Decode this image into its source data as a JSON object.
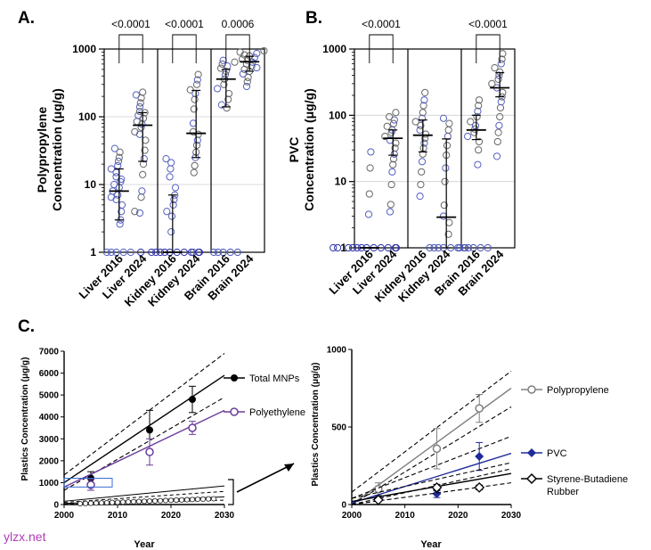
{
  "watermark": "ylzx.net",
  "chart_data": [
    {
      "panel": "A.",
      "type": "scatter",
      "scale": "log",
      "ylabel_line1": "Polypropylene",
      "ylabel_line2": "Concentration (μg/g)",
      "yticks": [
        "1",
        "10",
        "100",
        "1000"
      ],
      "ylim": [
        1,
        1000
      ],
      "categories": [
        "Liver 2016",
        "Liver 2024",
        "Kidney 2016",
        "Kidney 2024",
        "Brain 2016",
        "Brain 2024"
      ],
      "groups": [
        {
          "name": "Liver 2016",
          "median": 8,
          "q1": 3,
          "q3": 17,
          "values": [
            1,
            1,
            1,
            1,
            1,
            2.6,
            3,
            4,
            5,
            6,
            6.5,
            7,
            8,
            9,
            10,
            11,
            12,
            13,
            15,
            17,
            19,
            22,
            25,
            30,
            34
          ]
        },
        {
          "name": "Liver 2024",
          "median": 75,
          "q1": 22,
          "q3": 115,
          "values": [
            3.8,
            4,
            6.5,
            8,
            14,
            20,
            24,
            32,
            45,
            55,
            60,
            70,
            78,
            85,
            95,
            105,
            115,
            120,
            140,
            160,
            190,
            210,
            230
          ]
        },
        {
          "name": "Kidney 2016",
          "median": 1,
          "q1": 1,
          "q3": 7,
          "values": [
            1,
            1,
            1,
            1,
            1,
            1,
            1,
            1,
            1,
            1,
            1,
            2,
            3.4,
            4,
            5,
            6,
            7,
            9,
            13,
            17,
            21,
            24
          ]
        },
        {
          "name": "Kidney 2024",
          "median": 57,
          "q1": 25,
          "q3": 245,
          "values": [
            1,
            15,
            19,
            25,
            30,
            38,
            45,
            55,
            60,
            80,
            130,
            180,
            220,
            250,
            300,
            350,
            420
          ]
        },
        {
          "name": "Brain 2016",
          "median": 360,
          "q1": 140,
          "q3": 500,
          "values": [
            1,
            1,
            1,
            1,
            1,
            135,
            150,
            180,
            220,
            260,
            300,
            360,
            420,
            470,
            520,
            560,
            600,
            640,
            680
          ]
        },
        {
          "name": "Brain 2024",
          "median": 650,
          "q1": 470,
          "q3": 780,
          "values": [
            280,
            330,
            380,
            430,
            470,
            500,
            530,
            560,
            600,
            640,
            680,
            710,
            750,
            790,
            820,
            860,
            900,
            940
          ]
        }
      ],
      "comparisons": [
        {
          "label": "<0.0001",
          "groups": [
            0,
            1
          ]
        },
        {
          "label": "<0.0001",
          "groups": [
            2,
            3
          ]
        },
        {
          "label": "0.0006",
          "groups": [
            4,
            5
          ]
        }
      ]
    },
    {
      "panel": "B.",
      "type": "scatter",
      "scale": "log",
      "ylabel_line1": "PVC",
      "ylabel_line2": "Concentration (μg/g)",
      "yticks": [
        "1",
        "10",
        "100",
        "1000"
      ],
      "ylim": [
        1,
        1000
      ],
      "categories": [
        "Liver 2016",
        "Liver 2024",
        "Kidney 2016",
        "Kidney 2024",
        "Brain 2016",
        "Brain 2024"
      ],
      "groups": [
        {
          "name": "Liver 2016",
          "median": 1,
          "q1": 1,
          "q3": 1,
          "values": [
            1,
            1,
            1,
            1,
            1,
            1,
            1,
            1,
            1,
            1,
            1,
            1,
            3.2,
            6.5,
            16,
            28
          ]
        },
        {
          "name": "Liver 2024",
          "median": 45,
          "q1": 25,
          "q3": 60,
          "values": [
            3.5,
            4.5,
            9,
            14,
            18,
            22,
            26,
            32,
            38,
            42,
            48,
            55,
            60,
            68,
            75,
            85,
            95,
            110
          ]
        },
        {
          "name": "Kidney 2016",
          "median": 50,
          "q1": 28,
          "q3": 85,
          "values": [
            6,
            9,
            14,
            20,
            26,
            32,
            38,
            45,
            52,
            60,
            70,
            80,
            90,
            110,
            140,
            170,
            220
          ]
        },
        {
          "name": "Kidney 2024",
          "median": 2.9,
          "q1": 1,
          "q3": 44,
          "values": [
            1,
            1,
            1,
            1,
            1,
            1,
            1,
            1.6,
            2.4,
            3,
            4.4,
            10,
            16,
            25,
            35,
            48,
            60,
            75,
            90
          ]
        },
        {
          "name": "Brain 2016",
          "median": 60,
          "q1": 43,
          "q3": 100,
          "values": [
            1,
            1,
            1,
            1,
            1,
            1,
            18,
            30,
            40,
            48,
            55,
            62,
            70,
            80,
            95,
            115,
            140,
            170
          ]
        },
        {
          "name": "Brain 2024",
          "median": 260,
          "q1": 190,
          "q3": 440,
          "values": [
            24,
            40,
            55,
            70,
            95,
            130,
            160,
            190,
            220,
            260,
            300,
            350,
            400,
            450,
            520,
            600,
            700,
            850
          ]
        }
      ],
      "comparisons": [
        {
          "label": "<0.0001",
          "groups": [
            0,
            1
          ]
        },
        {
          "label": "<0.0001",
          "groups": [
            4,
            5
          ]
        }
      ]
    },
    {
      "panel": "C.",
      "type": "line",
      "ylabel": "Plastics Concentration (μg/g)",
      "xlabel": "Year",
      "xlim": [
        2000,
        2030
      ],
      "ylim": [
        0,
        7000
      ],
      "xticks": [
        "2000",
        "2010",
        "2020",
        "2030"
      ],
      "yticks": [
        "0",
        "1000",
        "2000",
        "3000",
        "4000",
        "5000",
        "6000",
        "7000"
      ],
      "series": [
        {
          "name": "Total MNPs",
          "x": [
            2005,
            2016,
            2024
          ],
          "y": [
            1200,
            3400,
            4800
          ],
          "err": [
            300,
            900,
            600
          ],
          "color": "#000000",
          "fit": [
            [
              2000,
              1000
            ],
            [
              2030,
              5900
            ]
          ],
          "ci_upper": [
            [
              2000,
              1350
            ],
            [
              2030,
              6900
            ]
          ],
          "ci_lower": [
            [
              2000,
              650
            ],
            [
              2030,
              4900
            ]
          ]
        },
        {
          "name": "Polyethylene",
          "x": [
            2005,
            2016,
            2024
          ],
          "y": [
            900,
            2400,
            3500
          ],
          "err": [
            250,
            600,
            300
          ],
          "color": "#6a3d9a",
          "fit": [
            [
              2000,
              800
            ],
            [
              2030,
              4300
            ]
          ],
          "ci_upper": [],
          "ci_lower": []
        }
      ],
      "inset_bracket_range": [
        0,
        1000
      ]
    },
    {
      "panel": "C-inset",
      "type": "line",
      "ylabel": "Plastics Concentration (μg/g)",
      "xlabel": "Year",
      "xlim": [
        2000,
        2030
      ],
      "ylim": [
        0,
        1000
      ],
      "xticks": [
        "2000",
        "2010",
        "2020",
        "2030"
      ],
      "yticks": [
        "0",
        "500",
        "1000"
      ],
      "series": [
        {
          "name": "Polypropylene",
          "x": [
            2005,
            2016,
            2024
          ],
          "y": [
            100,
            360,
            620
          ],
          "err": [
            40,
            130,
            90
          ],
          "color": "#808080",
          "fit": [
            [
              2000,
              0
            ],
            [
              2030,
              750
            ]
          ],
          "ci_upper": [
            [
              2000,
              80
            ],
            [
              2030,
              860
            ]
          ],
          "ci_lower": [
            [
              2000,
              -40
            ],
            [
              2030,
              630
            ]
          ]
        },
        {
          "name": "PVC",
          "x": [
            2005,
            2016,
            2024
          ],
          "y": [
            40,
            70,
            310
          ],
          "err": [
            15,
            25,
            90
          ],
          "color": "#1f2b99",
          "fit": [
            [
              2000,
              10
            ],
            [
              2030,
              330
            ]
          ],
          "ci_upper": [
            [
              2000,
              40
            ],
            [
              2030,
              440
            ]
          ],
          "ci_lower": [
            [
              2000,
              -20
            ],
            [
              2030,
              230
            ]
          ]
        },
        {
          "name": "Styrene-Butadiene Rubber",
          "name_line1": "Styrene-Butadiene",
          "name_line2": "Rubber",
          "x": [
            2005,
            2016,
            2024
          ],
          "y": [
            30,
            110,
            110
          ],
          "err": [
            10,
            20,
            15
          ],
          "color": "#000000",
          "fit": [
            [
              2000,
              20
            ],
            [
              2030,
              200
            ]
          ],
          "ci_upper": [
            [
              2000,
              40
            ],
            [
              2030,
              270
            ]
          ],
          "ci_lower": [
            [
              2000,
              0
            ],
            [
              2030,
              140
            ]
          ]
        }
      ]
    }
  ]
}
